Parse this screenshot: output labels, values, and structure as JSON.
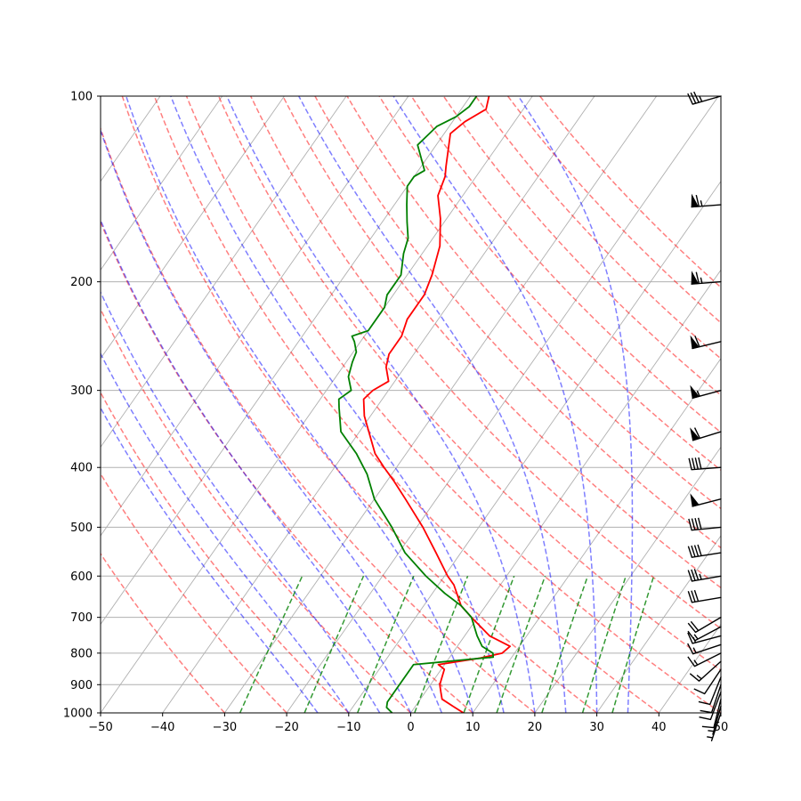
{
  "chart_data": {
    "type": "skewt",
    "title": "",
    "xlabel": "",
    "ylabel": "",
    "x_range": [
      -50,
      50
    ],
    "p_range": [
      1000,
      100
    ],
    "x_ticks": [
      -50,
      -40,
      -30,
      -20,
      -10,
      0,
      10,
      20,
      30,
      40,
      50
    ],
    "x_tick_labels": [
      "−50",
      "−40",
      "−30",
      "−20",
      "−10",
      "0",
      "10",
      "20",
      "30",
      "40",
      "50"
    ],
    "p_ticks": [
      1000,
      900,
      800,
      700,
      600,
      500,
      400,
      300,
      200,
      100
    ],
    "p_tick_labels": [
      "1000",
      "900",
      "800",
      "700",
      "600",
      "500",
      "400",
      "300",
      "200",
      "100"
    ],
    "skew_isotherms_C": [
      -140,
      -130,
      -120,
      -110,
      -100,
      -90,
      -80,
      -70,
      -60,
      -50,
      -40,
      -30,
      -20,
      -10,
      0,
      10,
      20,
      30,
      40,
      50
    ],
    "dry_adiabats_theta_C": [
      -30,
      -20,
      -10,
      0,
      10,
      20,
      30,
      40,
      50,
      60,
      70,
      80,
      90,
      100,
      110,
      120,
      130,
      140,
      150,
      160
    ],
    "moist_adiabats_start_C": [
      -15,
      -10,
      -5,
      0,
      5,
      10,
      15,
      20,
      25,
      30,
      35
    ],
    "mixing_ratio_lines_gkg": [
      0.4,
      1,
      2,
      4,
      7,
      10,
      16,
      24,
      32
    ],
    "mixing_ratio_top_hPa": 600,
    "colors": {
      "temperature": "#ff0000",
      "dewpoint": "#008000",
      "dry_adiabat": "#ff0000",
      "moist_adiabat": "#0000ff",
      "mixing_ratio": "#008000",
      "isotherm_grid": "#b0b0b0",
      "barb": "#000000"
    },
    "series": [
      {
        "name": "temperature",
        "points": [
          {
            "p": 1000,
            "t": 8.5
          },
          {
            "p": 975,
            "t": 6
          },
          {
            "p": 950,
            "t": 3.5
          },
          {
            "p": 925,
            "t": 2.5
          },
          {
            "p": 900,
            "t": 1.5
          },
          {
            "p": 850,
            "t": 0.5
          },
          {
            "p": 835,
            "t": -1
          },
          {
            "p": 815,
            "t": 5
          },
          {
            "p": 800,
            "t": 8
          },
          {
            "p": 780,
            "t": 8.5
          },
          {
            "p": 750,
            "t": 4
          },
          {
            "p": 700,
            "t": -1
          },
          {
            "p": 670,
            "t": -4
          },
          {
            "p": 620,
            "t": -7.5
          },
          {
            "p": 600,
            "t": -9.5
          },
          {
            "p": 550,
            "t": -14
          },
          {
            "p": 500,
            "t": -19
          },
          {
            "p": 450,
            "t": -25
          },
          {
            "p": 420,
            "t": -29
          },
          {
            "p": 400,
            "t": -32
          },
          {
            "p": 380,
            "t": -35
          },
          {
            "p": 350,
            "t": -38.5
          },
          {
            "p": 330,
            "t": -41
          },
          {
            "p": 310,
            "t": -43
          },
          {
            "p": 300,
            "t": -42.5
          },
          {
            "p": 290,
            "t": -41
          },
          {
            "p": 275,
            "t": -43
          },
          {
            "p": 262,
            "t": -44
          },
          {
            "p": 245,
            "t": -44
          },
          {
            "p": 230,
            "t": -45
          },
          {
            "p": 215,
            "t": -45
          },
          {
            "p": 210,
            "t": -45
          },
          {
            "p": 195,
            "t": -46
          },
          {
            "p": 175,
            "t": -48
          },
          {
            "p": 158,
            "t": -51
          },
          {
            "p": 145,
            "t": -54
          },
          {
            "p": 135,
            "t": -55
          },
          {
            "p": 130,
            "t": -56
          },
          {
            "p": 115,
            "t": -59
          },
          {
            "p": 110,
            "t": -58
          },
          {
            "p": 105,
            "t": -56
          },
          {
            "p": 100,
            "t": -57
          }
        ]
      },
      {
        "name": "dewpoint",
        "points": [
          {
            "p": 1000,
            "t": -3
          },
          {
            "p": 980,
            "t": -4.5
          },
          {
            "p": 960,
            "t": -5
          },
          {
            "p": 925,
            "t": -5
          },
          {
            "p": 900,
            "t": -5
          },
          {
            "p": 850,
            "t": -5
          },
          {
            "p": 835,
            "t": -5
          },
          {
            "p": 812,
            "t": 7
          },
          {
            "p": 800,
            "t": 6.5
          },
          {
            "p": 780,
            "t": 4
          },
          {
            "p": 750,
            "t": 2
          },
          {
            "p": 700,
            "t": -1
          },
          {
            "p": 670,
            "t": -4
          },
          {
            "p": 640,
            "t": -8
          },
          {
            "p": 600,
            "t": -13
          },
          {
            "p": 550,
            "t": -19
          },
          {
            "p": 500,
            "t": -24
          },
          {
            "p": 450,
            "t": -30
          },
          {
            "p": 410,
            "t": -34
          },
          {
            "p": 380,
            "t": -38
          },
          {
            "p": 350,
            "t": -43
          },
          {
            "p": 320,
            "t": -46
          },
          {
            "p": 310,
            "t": -47
          },
          {
            "p": 300,
            "t": -46
          },
          {
            "p": 285,
            "t": -48
          },
          {
            "p": 270,
            "t": -49
          },
          {
            "p": 260,
            "t": -49.5
          },
          {
            "p": 250,
            "t": -51
          },
          {
            "p": 245,
            "t": -52
          },
          {
            "p": 240,
            "t": -50
          },
          {
            "p": 220,
            "t": -50
          },
          {
            "p": 210,
            "t": -51
          },
          {
            "p": 205,
            "t": -51
          },
          {
            "p": 195,
            "t": -51
          },
          {
            "p": 180,
            "t": -53
          },
          {
            "p": 170,
            "t": -54
          },
          {
            "p": 160,
            "t": -56
          },
          {
            "p": 150,
            "t": -58
          },
          {
            "p": 140,
            "t": -60
          },
          {
            "p": 135,
            "t": -60
          },
          {
            "p": 132,
            "t": -59
          },
          {
            "p": 120,
            "t": -63
          },
          {
            "p": 112,
            "t": -62
          },
          {
            "p": 108,
            "t": -60
          },
          {
            "p": 104,
            "t": -59
          },
          {
            "p": 100,
            "t": -59
          }
        ]
      }
    ],
    "wind_barbs": [
      {
        "p": 1000,
        "u": 2,
        "v": 6
      },
      {
        "p": 975,
        "u": 2,
        "v": 7
      },
      {
        "p": 950,
        "u": 2,
        "v": 8
      },
      {
        "p": 925,
        "u": 3,
        "v": 8
      },
      {
        "p": 900,
        "u": 3,
        "v": 9
      },
      {
        "p": 875,
        "u": 4,
        "v": 10
      },
      {
        "p": 850,
        "u": 6,
        "v": 9
      },
      {
        "p": 825,
        "u": 10,
        "v": 9
      },
      {
        "p": 800,
        "u": 12,
        "v": 6
      },
      {
        "p": 775,
        "u": 12,
        "v": 4
      },
      {
        "p": 750,
        "u": 15,
        "v": 4
      },
      {
        "p": 725,
        "u": 15,
        "v": 8
      },
      {
        "p": 700,
        "u": 17,
        "v": 10
      },
      {
        "p": 650,
        "u": 30,
        "v": 5
      },
      {
        "p": 600,
        "u": 34,
        "v": 6
      },
      {
        "p": 550,
        "u": 38,
        "v": 6
      },
      {
        "p": 500,
        "u": 40,
        "v": 4
      },
      {
        "p": 450,
        "u": 50,
        "v": 13
      },
      {
        "p": 400,
        "u": 40,
        "v": 3
      },
      {
        "p": 350,
        "u": 55,
        "v": 17
      },
      {
        "p": 300,
        "u": 55,
        "v": 15
      },
      {
        "p": 250,
        "u": 58,
        "v": 14
      },
      {
        "p": 200,
        "u": 65,
        "v": 5
      },
      {
        "p": 150,
        "u": 65,
        "v": 5
      },
      {
        "p": 100,
        "u": 35,
        "v": 10
      }
    ]
  }
}
